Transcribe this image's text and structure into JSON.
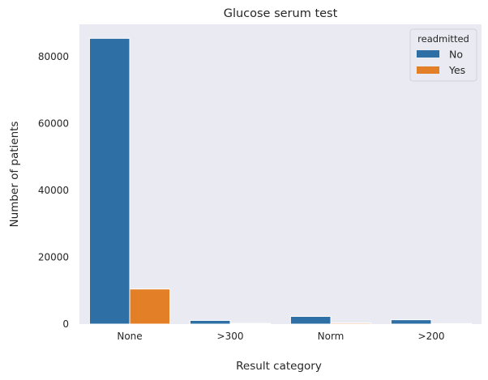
{
  "chart_data": {
    "type": "bar",
    "title": "Glucose serum test",
    "xlabel": "Result category",
    "ylabel": "Number of patients",
    "categories": [
      "None",
      ">300",
      "Norm",
      ">200"
    ],
    "series": [
      {
        "name": "No",
        "values": [
          85500,
          1100,
          2300,
          1300
        ],
        "color": "#2e6fa6"
      },
      {
        "name": "Yes",
        "values": [
          10500,
          200,
          300,
          150
        ],
        "color": "#e37f26"
      }
    ],
    "ylim": [
      0,
      89700
    ],
    "yticks": [
      0,
      20000,
      40000,
      60000,
      80000
    ],
    "grid": false,
    "background": "#eaeaf2",
    "legend": {
      "title": "readmitted",
      "placement": "top-right"
    }
  }
}
